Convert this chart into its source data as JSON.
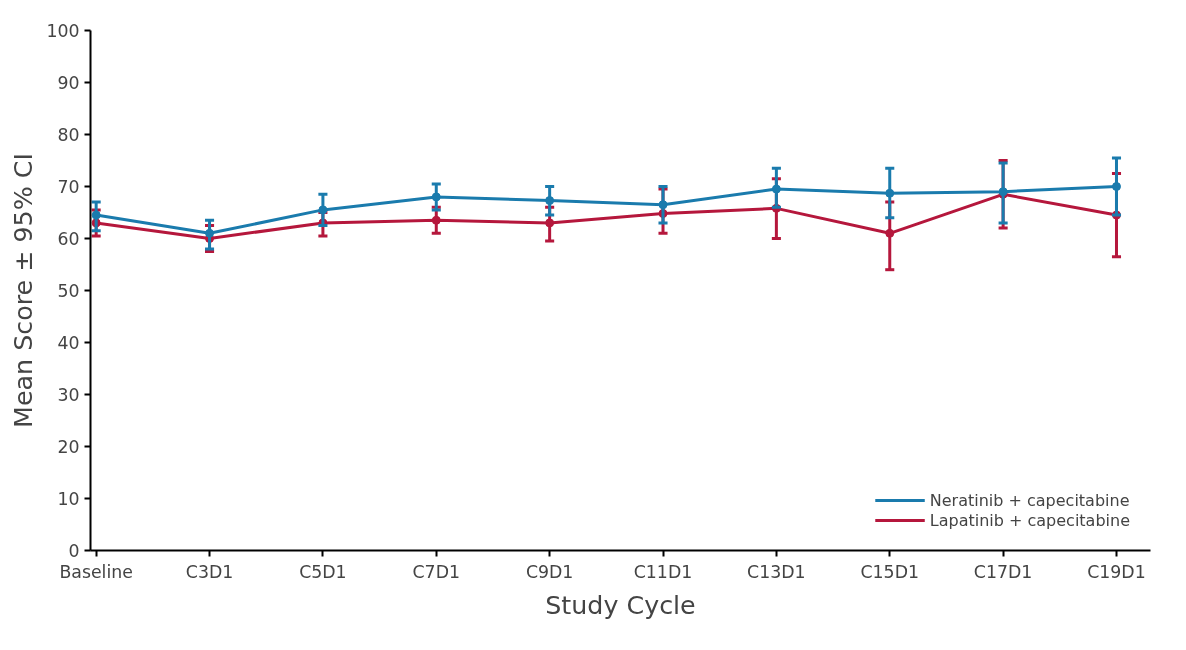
{
  "chart_data": {
    "type": "line",
    "xlabel": "Study Cycle",
    "ylabel": "Mean Score ± 95% CI",
    "categories": [
      "Baseline",
      "C3D1",
      "C5D1",
      "C7D1",
      "C9D1",
      "C11D1",
      "C13D1",
      "C15D1",
      "C17D1",
      "C19D1"
    ],
    "ylim": [
      0,
      100
    ],
    "yticks": [
      0,
      10,
      20,
      30,
      40,
      50,
      60,
      70,
      80,
      90,
      100
    ],
    "grid": false,
    "legend": "bottom right",
    "marker": "circle",
    "line_style": "solid",
    "series": [
      {
        "name": "Neratinib + capecitabine",
        "color": "#1a7bad",
        "values": [
          64.5,
          61,
          65.5,
          68,
          67.3,
          66.5,
          69.5,
          68.7,
          69,
          70
        ],
        "errors": [
          [
            61.5,
            67
          ],
          [
            58,
            63.5
          ],
          [
            62.5,
            68.5
          ],
          [
            65.5,
            70.5
          ],
          [
            64.5,
            70
          ],
          [
            63,
            70
          ],
          [
            66,
            73.5
          ],
          [
            64,
            73.5
          ],
          [
            63,
            74.5
          ],
          [
            64.5,
            75.5
          ]
        ]
      },
      {
        "name": "Lapatinib + capecitabine",
        "color": "#b5173c",
        "values": [
          63,
          60,
          63,
          63.5,
          63,
          64.8,
          65.8,
          61,
          68.5,
          64.5
        ],
        "errors": [
          [
            60.5,
            65.5
          ],
          [
            57.5,
            62.5
          ],
          [
            60.5,
            65
          ],
          [
            61,
            66
          ],
          [
            59.5,
            66
          ],
          [
            61,
            69.5
          ],
          [
            60,
            71.5
          ],
          [
            54,
            67
          ],
          [
            62,
            75
          ],
          [
            56.5,
            72.5
          ]
        ]
      }
    ]
  }
}
